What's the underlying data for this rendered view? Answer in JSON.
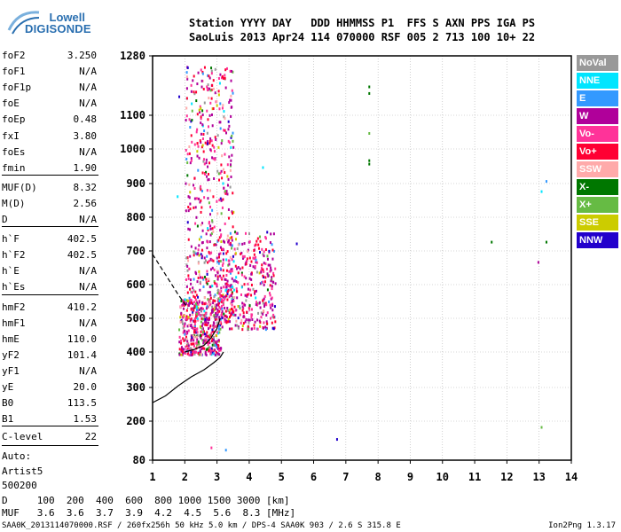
{
  "logo": {
    "line1": "Lowell",
    "line2": "DIGISONDE"
  },
  "header": {
    "line1": "Station YYYY DAY   DDD HHMMSS P1  FFS S AXN PPS IGA PS",
    "line2": "SaoLuis 2013 Apr24 114 070000 RSF 005 2 713 100 10+ 22"
  },
  "params": {
    "group1": [
      {
        "label": "foF2",
        "value": "3.250"
      },
      {
        "label": "foF1",
        "value": "N/A"
      },
      {
        "label": "foF1p",
        "value": "N/A"
      },
      {
        "label": "foE",
        "value": "N/A"
      },
      {
        "label": "foEp",
        "value": "0.48"
      },
      {
        "label": "fxI",
        "value": "3.80"
      },
      {
        "label": "foEs",
        "value": "N/A"
      },
      {
        "label": "fmin",
        "value": "1.90"
      }
    ],
    "group2": [
      {
        "label": "MUF(D)",
        "value": "8.32"
      },
      {
        "label": "M(D)",
        "value": "2.56"
      },
      {
        "label": "D",
        "value": "N/A"
      }
    ],
    "group3": [
      {
        "label": "h`F",
        "value": "402.5"
      },
      {
        "label": "h`F2",
        "value": "402.5"
      },
      {
        "label": "h`E",
        "value": "N/A"
      },
      {
        "label": "h`Es",
        "value": "N/A"
      }
    ],
    "group4": [
      {
        "label": "hmF2",
        "value": "410.2"
      },
      {
        "label": "hmF1",
        "value": "N/A"
      },
      {
        "label": "hmE",
        "value": "110.0"
      },
      {
        "label": "yF2",
        "value": "101.4"
      },
      {
        "label": "yF1",
        "value": "N/A"
      },
      {
        "label": "yE",
        "value": "20.0"
      },
      {
        "label": "B0",
        "value": "113.5"
      },
      {
        "label": "B1",
        "value": "1.53"
      }
    ],
    "clevel": {
      "label": "C-level",
      "value": "22"
    },
    "auto": [
      "Auto:",
      "Artist5",
      "500200"
    ]
  },
  "legend": [
    {
      "label": "NoVal",
      "color": "#999999"
    },
    {
      "label": "NNE",
      "color": "#00e5ff"
    },
    {
      "label": "E",
      "color": "#3399ff"
    },
    {
      "label": "W",
      "color": "#b0009a"
    },
    {
      "label": "Vo-",
      "color": "#ff3399"
    },
    {
      "label": "Vo+",
      "color": "#ff0033"
    },
    {
      "label": "SSW",
      "color": "#ffaaaa"
    },
    {
      "label": "X-",
      "color": "#007700"
    },
    {
      "label": "X+",
      "color": "#66bb44"
    },
    {
      "label": "SSE",
      "color": "#cccc00"
    },
    {
      "label": "NNW",
      "color": "#2200cc"
    }
  ],
  "dtable": {
    "d_line": "D     100  200  400  600  800 1000 1500 3000 [km]",
    "muf_line": "MUF   3.6  3.6  3.7  3.9  4.2  4.5  5.6  8.3 [MHz]"
  },
  "footer": {
    "left": "SAA0K_2013114070000.RSF / 260fx256h 50 kHz 5.0 km / DPS-4 SAA0K 903 / 2.6 S 315.8 E",
    "right": "Ion2Png 1.3.17"
  },
  "chart_data": {
    "type": "scatter",
    "x_ticks": [
      "1",
      "2",
      "3",
      "4",
      "5",
      "6",
      "7",
      "8",
      "9",
      "10",
      "11",
      "12",
      "13",
      "14"
    ],
    "y_ticks": [
      "80",
      "200",
      "300",
      "400",
      "500",
      "600",
      "700",
      "800",
      "900",
      "1000",
      "1100",
      "1280"
    ],
    "xlim": [
      1,
      14
    ],
    "ylim": [
      80,
      1280
    ],
    "y_tick_values": [
      80,
      200,
      300,
      400,
      500,
      600,
      700,
      800,
      900,
      1000,
      1100,
      1280
    ],
    "grid": true,
    "trace_profile": [
      [
        1.0,
        255
      ],
      [
        1.4,
        275
      ],
      [
        1.8,
        305
      ],
      [
        2.2,
        330
      ],
      [
        2.6,
        350
      ],
      [
        2.9,
        370
      ],
      [
        3.1,
        385
      ],
      [
        3.2,
        400
      ]
    ],
    "virtual_height_trace": [
      [
        2.0,
        400
      ],
      [
        2.3,
        408
      ],
      [
        2.6,
        420
      ],
      [
        2.8,
        440
      ],
      [
        3.0,
        470
      ],
      [
        3.1,
        500
      ]
    ],
    "dashed_trace": [
      [
        1.0,
        690
      ],
      [
        1.4,
        630
      ],
      [
        1.8,
        570
      ],
      [
        2.1,
        530
      ]
    ],
    "echo_clusters": [
      {
        "x": [
          1.8,
          3.1
        ],
        "y": [
          395,
          560
        ],
        "n": 420
      },
      {
        "x": [
          2.0,
          3.5
        ],
        "y": [
          500,
          1250
        ],
        "n": 560
      },
      {
        "x": [
          3.0,
          4.8
        ],
        "y": [
          470,
          760
        ],
        "n": 380
      }
    ],
    "isolated_echoes": [
      {
        "x": 1.8,
        "y": 1160,
        "color": "#2200cc"
      },
      {
        "x": 1.75,
        "y": 865,
        "color": "#00e5ff"
      },
      {
        "x": 4.4,
        "y": 950,
        "color": "#00e5ff"
      },
      {
        "x": 5.45,
        "y": 725,
        "color": "#2200cc"
      },
      {
        "x": 6.7,
        "y": 148,
        "color": "#2200cc"
      },
      {
        "x": 7.7,
        "y": 1190,
        "color": "#007700"
      },
      {
        "x": 7.7,
        "y": 1170,
        "color": "#007700"
      },
      {
        "x": 7.7,
        "y": 1050,
        "color": "#66bb44"
      },
      {
        "x": 7.7,
        "y": 970,
        "color": "#007700"
      },
      {
        "x": 7.7,
        "y": 960,
        "color": "#007700"
      },
      {
        "x": 11.5,
        "y": 730,
        "color": "#007700"
      },
      {
        "x": 12.95,
        "y": 670,
        "color": "#b0009a"
      },
      {
        "x": 13.05,
        "y": 880,
        "color": "#00e5ff"
      },
      {
        "x": 13.2,
        "y": 910,
        "color": "#3399ff"
      },
      {
        "x": 13.2,
        "y": 730,
        "color": "#007700"
      },
      {
        "x": 13.05,
        "y": 185,
        "color": "#66bb44"
      },
      {
        "x": 2.8,
        "y": 122,
        "color": "#ff3399"
      },
      {
        "x": 3.25,
        "y": 115,
        "color": "#3399ff"
      }
    ]
  }
}
